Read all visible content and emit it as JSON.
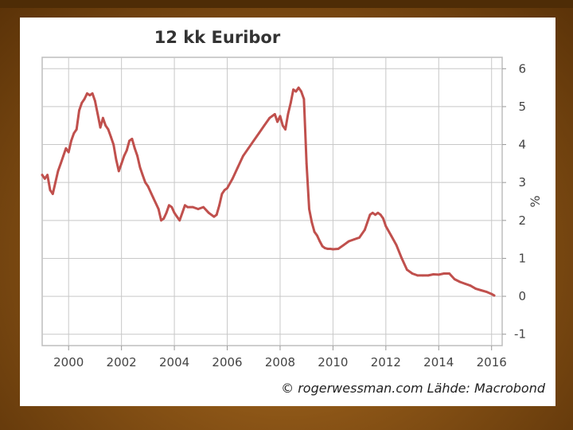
{
  "chart_data": {
    "type": "line",
    "title": "12 kk Euribor",
    "xlabel": "",
    "ylabel": "%",
    "credit": "© rogerwessman.com Lähde: Macrobond",
    "xlim": [
      1999.0,
      2016.4
    ],
    "ylim": [
      -1.3,
      6.3
    ],
    "x_ticks": [
      2000,
      2002,
      2004,
      2006,
      2008,
      2010,
      2012,
      2014,
      2016
    ],
    "y_ticks": [
      -1,
      0,
      1,
      2,
      3,
      4,
      5,
      6
    ],
    "grid": true,
    "legend": "none",
    "series": [
      {
        "color": "#c0504d",
        "x": [
          1999.0,
          1999.1,
          1999.2,
          1999.3,
          1999.4,
          1999.5,
          1999.6,
          1999.7,
          1999.8,
          1999.9,
          2000.0,
          2000.1,
          2000.2,
          2000.3,
          2000.4,
          2000.5,
          2000.6,
          2000.7,
          2000.8,
          2000.9,
          2001.0,
          2001.1,
          2001.2,
          2001.3,
          2001.4,
          2001.5,
          2001.6,
          2001.7,
          2001.8,
          2001.9,
          2002.0,
          2002.1,
          2002.2,
          2002.3,
          2002.4,
          2002.5,
          2002.6,
          2002.7,
          2002.8,
          2002.9,
          2003.0,
          2003.2,
          2003.4,
          2003.5,
          2003.6,
          2003.7,
          2003.8,
          2003.9,
          2004.0,
          2004.1,
          2004.2,
          2004.3,
          2004.4,
          2004.5,
          2004.7,
          2004.9,
          2005.1,
          2005.3,
          2005.5,
          2005.6,
          2005.7,
          2005.8,
          2005.9,
          2006.0,
          2006.2,
          2006.4,
          2006.6,
          2006.8,
          2007.0,
          2007.2,
          2007.4,
          2007.6,
          2007.8,
          2007.9,
          2008.0,
          2008.1,
          2008.2,
          2008.3,
          2008.4,
          2008.5,
          2008.6,
          2008.7,
          2008.8,
          2008.9,
          2009.0,
          2009.1,
          2009.2,
          2009.3,
          2009.4,
          2009.5,
          2009.6,
          2009.7,
          2009.8,
          2009.9,
          2010.0,
          2010.2,
          2010.4,
          2010.6,
          2010.8,
          2011.0,
          2011.2,
          2011.3,
          2011.4,
          2011.5,
          2011.6,
          2011.7,
          2011.8,
          2011.9,
          2012.0,
          2012.2,
          2012.4,
          2012.6,
          2012.8,
          2013.0,
          2013.2,
          2013.4,
          2013.6,
          2013.8,
          2014.0,
          2014.2,
          2014.4,
          2014.6,
          2014.8,
          2015.0,
          2015.2,
          2015.4,
          2015.6,
          2015.8,
          2016.0,
          2016.1
        ],
        "y": [
          3.2,
          3.1,
          3.2,
          2.8,
          2.7,
          3.0,
          3.3,
          3.5,
          3.7,
          3.9,
          3.8,
          4.1,
          4.3,
          4.4,
          4.9,
          5.1,
          5.2,
          5.35,
          5.3,
          5.35,
          5.15,
          4.8,
          4.45,
          4.7,
          4.5,
          4.4,
          4.2,
          4.0,
          3.6,
          3.3,
          3.5,
          3.7,
          3.85,
          4.1,
          4.15,
          3.9,
          3.7,
          3.4,
          3.2,
          3.0,
          2.9,
          2.6,
          2.3,
          2.0,
          2.05,
          2.2,
          2.4,
          2.35,
          2.2,
          2.1,
          2.0,
          2.2,
          2.4,
          2.35,
          2.35,
          2.3,
          2.35,
          2.2,
          2.1,
          2.15,
          2.4,
          2.7,
          2.8,
          2.85,
          3.1,
          3.4,
          3.7,
          3.9,
          4.1,
          4.3,
          4.5,
          4.7,
          4.8,
          4.6,
          4.75,
          4.5,
          4.4,
          4.8,
          5.1,
          5.45,
          5.4,
          5.5,
          5.4,
          5.2,
          3.5,
          2.3,
          1.95,
          1.7,
          1.6,
          1.45,
          1.32,
          1.27,
          1.25,
          1.25,
          1.24,
          1.25,
          1.35,
          1.45,
          1.5,
          1.55,
          1.75,
          1.95,
          2.15,
          2.2,
          2.15,
          2.2,
          2.15,
          2.05,
          1.85,
          1.6,
          1.35,
          1.0,
          0.7,
          0.6,
          0.55,
          0.55,
          0.55,
          0.58,
          0.57,
          0.6,
          0.6,
          0.45,
          0.38,
          0.33,
          0.28,
          0.2,
          0.16,
          0.12,
          0.06,
          0.02
        ]
      }
    ]
  }
}
